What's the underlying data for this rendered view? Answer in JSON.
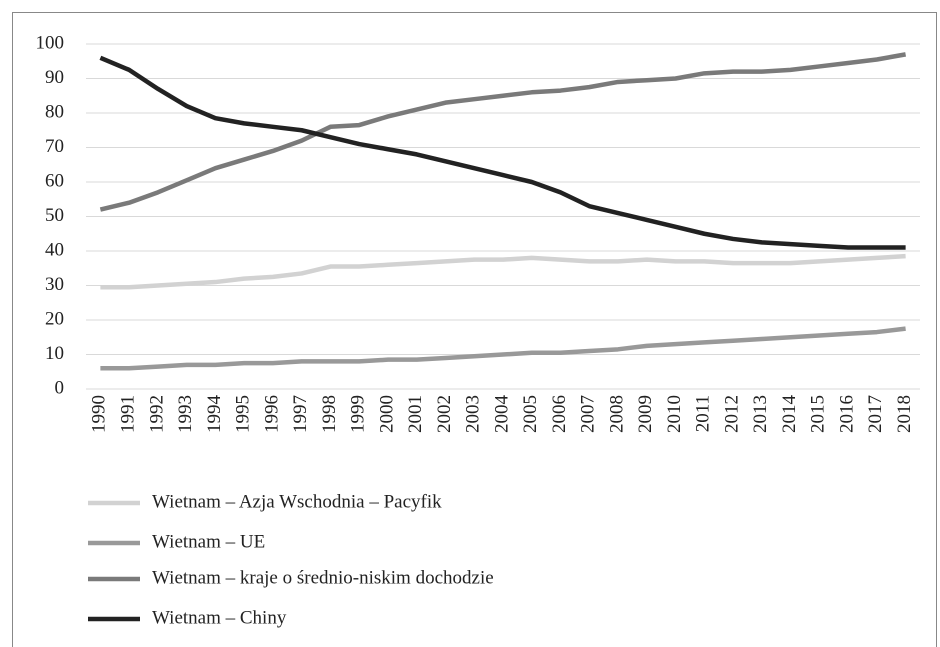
{
  "chart_data": {
    "type": "line",
    "categories": [
      "1990",
      "1991",
      "1992",
      "1993",
      "1994",
      "1995",
      "1996",
      "1997",
      "1998",
      "1999",
      "2000",
      "2001",
      "2002",
      "2003",
      "2004",
      "2005",
      "2006",
      "2007",
      "2008",
      "2009",
      "2010",
      "2011",
      "2012",
      "2013",
      "2014",
      "2015",
      "2016",
      "2017",
      "2018"
    ],
    "series": [
      {
        "name": "Wietnam – Azja Wschodnia – Pacyfik",
        "color": "#d2d2d2",
        "values": [
          29.5,
          29.5,
          30,
          30.5,
          31,
          32,
          32.5,
          33.5,
          35.5,
          35.5,
          36,
          36.5,
          37,
          37.5,
          37.5,
          38,
          37.5,
          37,
          37,
          37.5,
          37,
          37,
          36.5,
          36.5,
          36.5,
          37,
          37.5,
          38,
          38.5
        ]
      },
      {
        "name": "Wietnam – UE",
        "color": "#999999",
        "values": [
          6,
          6,
          6.5,
          7,
          7,
          7.5,
          7.5,
          8,
          8,
          8,
          8.5,
          8.5,
          9,
          9.5,
          10,
          10.5,
          10.5,
          11,
          11.5,
          12.5,
          13,
          13.5,
          14,
          14.5,
          15,
          15.5,
          16,
          16.5,
          17.5
        ]
      },
      {
        "name": "Wietnam – kraje o średnio-niskim dochodzie",
        "color": "#7a7a7a",
        "values": [
          52,
          54,
          57,
          60.5,
          64,
          66.5,
          69,
          72,
          76,
          76.5,
          79,
          81,
          83,
          84,
          85,
          86,
          86.5,
          87.5,
          89,
          89.5,
          90,
          91.5,
          92,
          92,
          92.5,
          93.5,
          94.5,
          95.5,
          97
        ]
      },
      {
        "name": "Wietnam – Chiny",
        "color": "#222222",
        "values": [
          96,
          92.5,
          87,
          82,
          78.5,
          77,
          76,
          75,
          73,
          71,
          69.5,
          68,
          66,
          64,
          62,
          60,
          57,
          53,
          51,
          49,
          47,
          45,
          43.5,
          42.5,
          42,
          41.5,
          41,
          41,
          41
        ]
      }
    ],
    "ylim": [
      0,
      100
    ],
    "yticks": [
      0,
      10,
      20,
      30,
      40,
      50,
      60,
      70,
      80,
      90,
      100
    ],
    "grid": true
  }
}
